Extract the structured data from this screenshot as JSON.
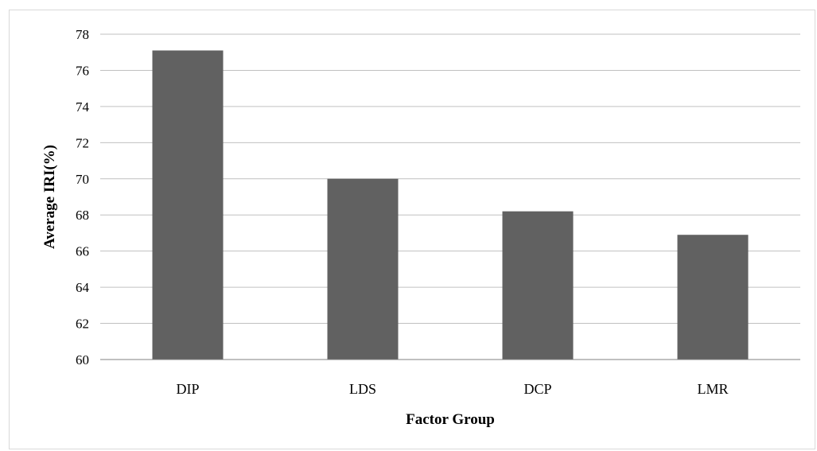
{
  "chart_data": {
    "type": "bar",
    "title": "",
    "xlabel": "Factor Group",
    "ylabel": "Average IRI(%)",
    "categories": [
      "DIP",
      "LDS",
      "DCP",
      "LMR"
    ],
    "values": [
      77.1,
      70.0,
      68.2,
      66.9
    ],
    "ylim": [
      60,
      78
    ],
    "yticks": [
      "60",
      "62",
      "64",
      "66",
      "68",
      "70",
      "72",
      "74",
      "76",
      "78"
    ],
    "grid": true,
    "legend": "none",
    "bar_color": "#616161",
    "grid_color": "#c0c0c0",
    "axis_color": "#808080"
  }
}
